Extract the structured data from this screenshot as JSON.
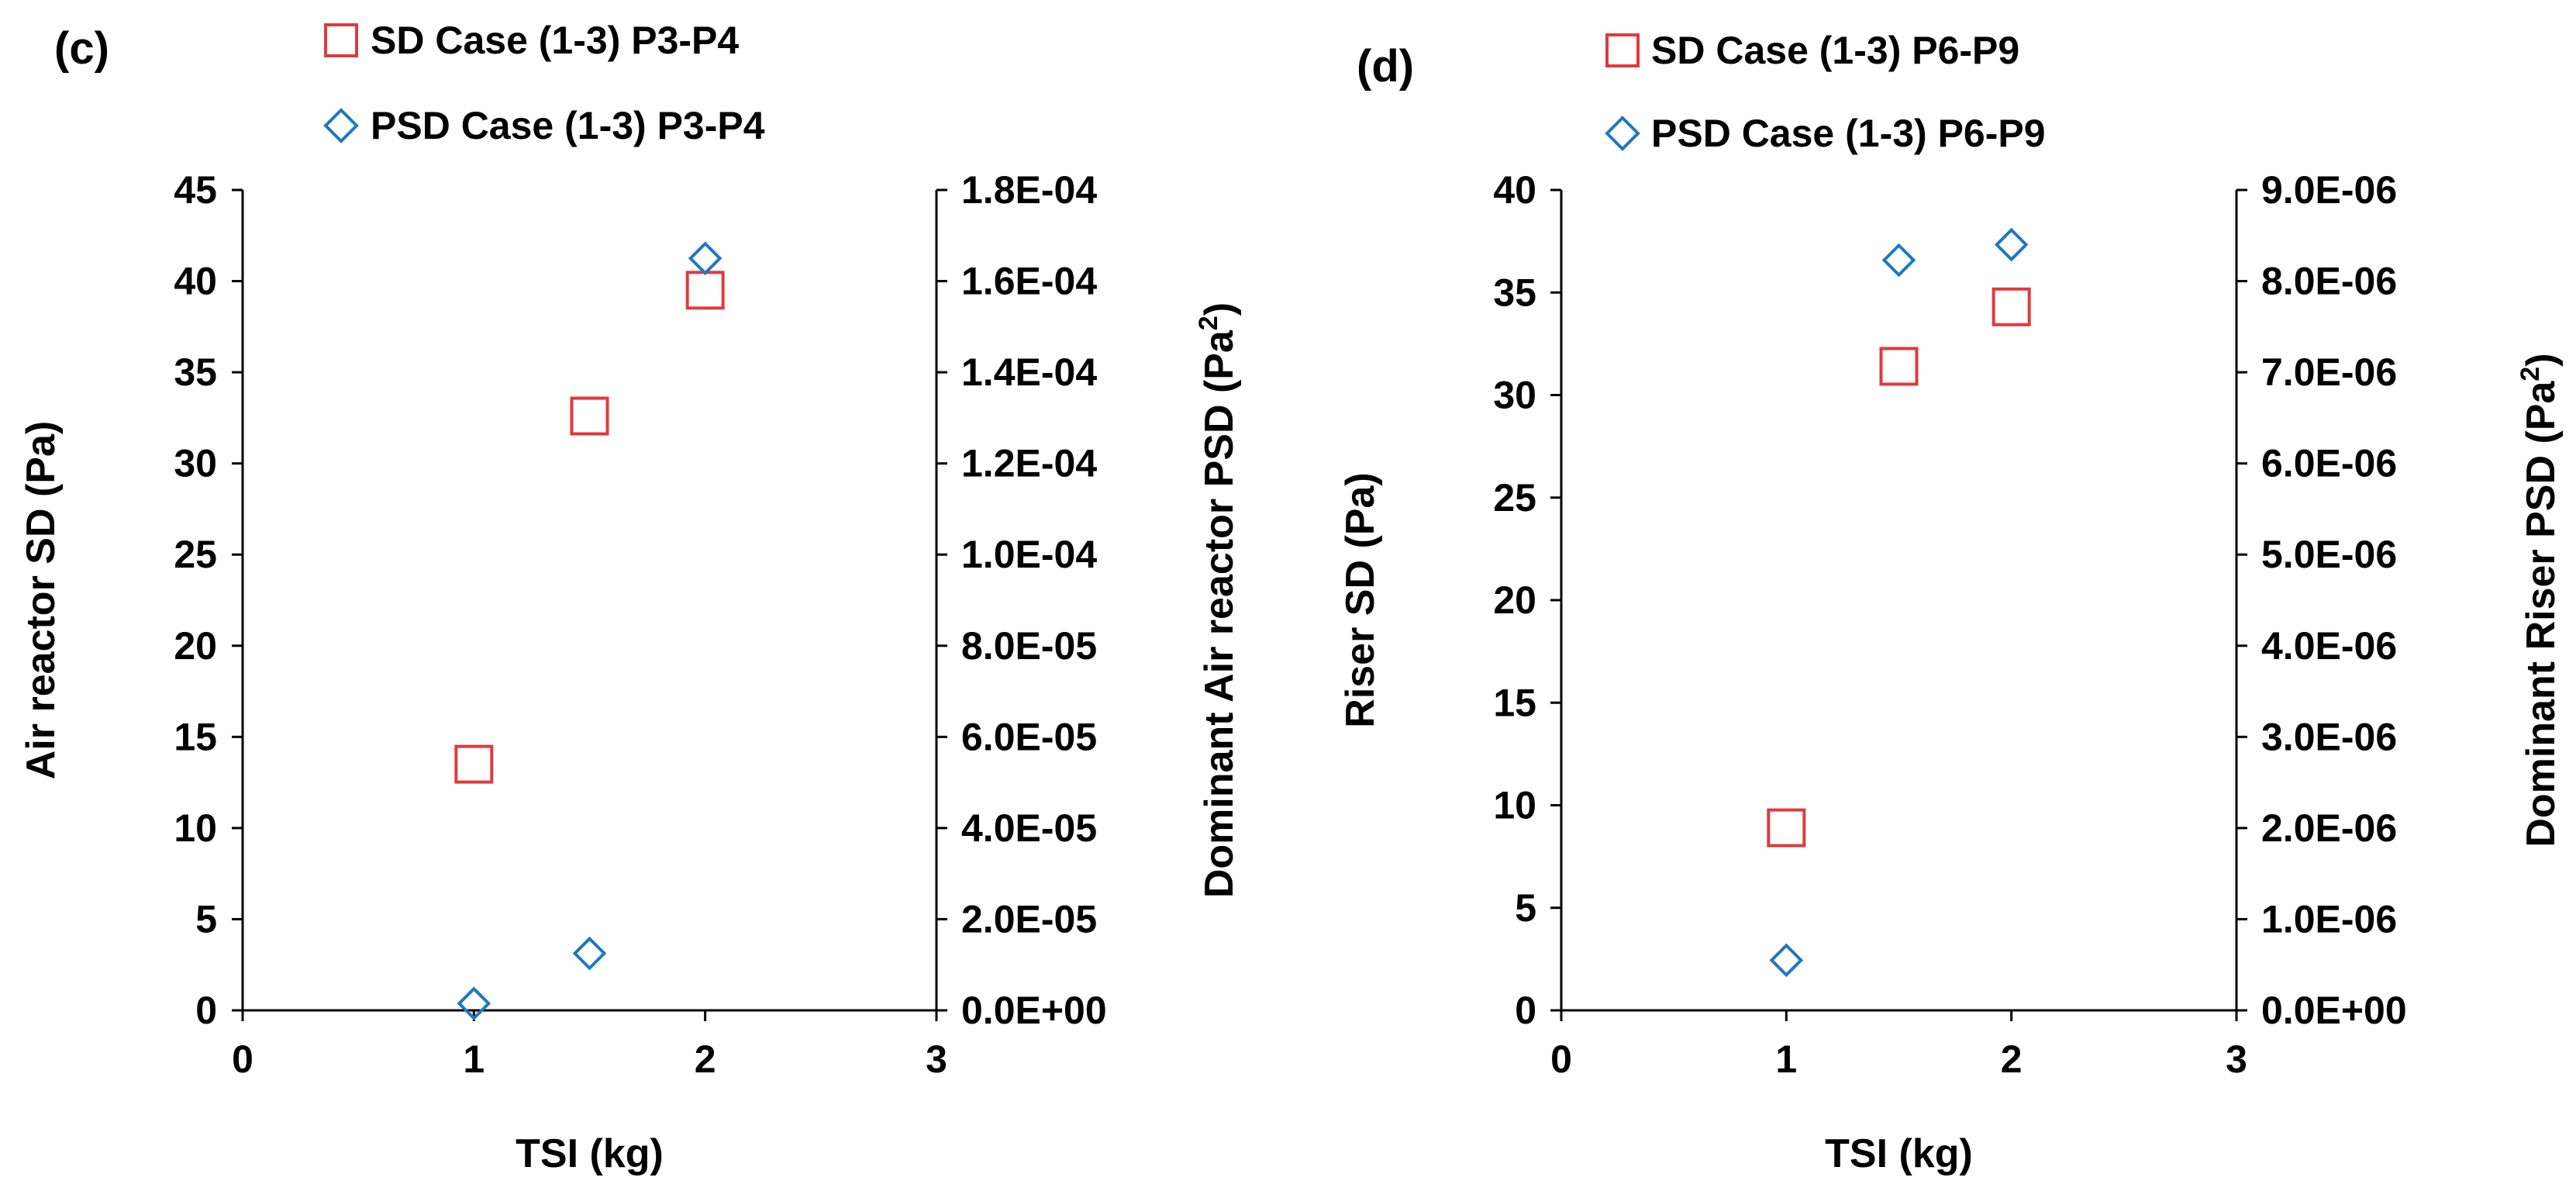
{
  "chart_data": [
    {
      "type": "scatter",
      "panel_label": "(c)",
      "legend": {
        "sd": "SD Case (1-3) P3-P4",
        "psd": "PSD Case (1-3) P3-P4"
      },
      "xlabel": "TSI (kg)",
      "ylabel": "Air reactor SD (Pa)",
      "y2label_main": "Dominant Air reactor PSD (Pa",
      "y2label_sup": "2",
      "y2label_end": ")",
      "xlim": [
        0,
        3
      ],
      "ylim": [
        0,
        45
      ],
      "y2lim": [
        0,
        0.00018
      ],
      "x_ticks": [
        "0",
        "1",
        "2",
        "3"
      ],
      "y_ticks": [
        "0",
        "5",
        "10",
        "15",
        "20",
        "25",
        "30",
        "35",
        "40",
        "45"
      ],
      "y2_ticks": [
        "0.0E+00",
        "2.0E-05",
        "4.0E-05",
        "6.0E-05",
        "8.0E-05",
        "1.0E-04",
        "1.2E-04",
        "1.4E-04",
        "1.6E-04",
        "1.8E-04"
      ],
      "series": [
        {
          "name": "SD Case (1-3) P3-P4",
          "axis": "left",
          "marker": "square",
          "color": "#e0393e",
          "x": [
            1,
            1.5,
            2
          ],
          "y": [
            13.5,
            32.6,
            39.5
          ]
        },
        {
          "name": "PSD Case (1-3) P3-P4",
          "axis": "right",
          "marker": "diamond",
          "color": "#1f78c1",
          "x": [
            1,
            1.5,
            2
          ],
          "y": [
            1.5e-06,
            1.25e-05,
            0.000165
          ]
        }
      ]
    },
    {
      "type": "scatter",
      "panel_label": "(d)",
      "legend": {
        "sd": "SD Case (1-3) P6-P9",
        "psd": "PSD Case (1-3) P6-P9"
      },
      "xlabel": "TSI (kg)",
      "ylabel": "Riser SD (Pa)",
      "y2label_main": "Dominant Riser PSD (Pa",
      "y2label_sup": "2",
      "y2label_end": ")",
      "xlim": [
        0,
        3
      ],
      "ylim": [
        0,
        40
      ],
      "y2lim": [
        0,
        9e-06
      ],
      "x_ticks": [
        "0",
        "1",
        "2",
        "3"
      ],
      "y_ticks": [
        "0",
        "5",
        "10",
        "15",
        "20",
        "25",
        "30",
        "35",
        "40"
      ],
      "y2_ticks": [
        "0.0E+00",
        "1.0E-06",
        "2.0E-06",
        "3.0E-06",
        "4.0E-06",
        "5.0E-06",
        "6.0E-06",
        "7.0E-06",
        "8.0E-06",
        "9.0E-06"
      ],
      "series": [
        {
          "name": "SD Case (1-3) P6-P9",
          "axis": "left",
          "marker": "square",
          "color": "#e0393e",
          "x": [
            1,
            1.5,
            2
          ],
          "y": [
            8.9,
            31.4,
            34.3
          ]
        },
        {
          "name": "PSD Case (1-3) P6-P9",
          "axis": "right",
          "marker": "diamond",
          "color": "#1f78c1",
          "x": [
            1,
            1.5,
            2
          ],
          "y": [
            5.5e-07,
            8.23e-06,
            8.4e-06
          ]
        }
      ]
    }
  ]
}
